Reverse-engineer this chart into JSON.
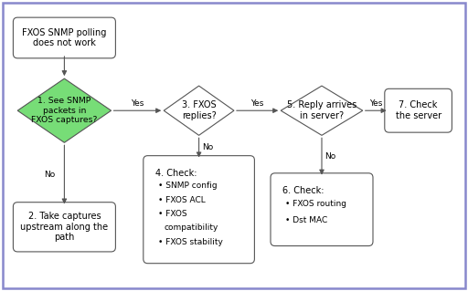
{
  "bg_color": "#ffffff",
  "border_color": "#8888cc",
  "box_fill": "#ffffff",
  "box_edge": "#555555",
  "diamond_fill": "#77dd77",
  "arrow_color": "#555555",
  "text_color": "#000000",
  "font_size": 7.0,
  "title_box": "FXOS SNMP polling\ndoes not work",
  "diamond1": "1. See SNMP\npackets in\nFXOS captures?",
  "diamond3": "3. FXOS\nreplies?",
  "diamond5": "5. Reply arrives\nin server?",
  "box2": "2. Take captures\nupstream along the\npath",
  "box4_title": "4. Check:",
  "box4_items": [
    "SNMP config",
    "FXOS ACL",
    "FXOS\ncompatibility",
    "FXOS stability"
  ],
  "box6_title": "6. Check:",
  "box6_items": [
    "FXOS routing",
    "Dst MAC"
  ],
  "box7": "7. Check\nthe server",
  "yes_label": "Yes",
  "no_label": "No",
  "xlim": [
    0,
    16
  ],
  "ylim": [
    0,
    10
  ]
}
